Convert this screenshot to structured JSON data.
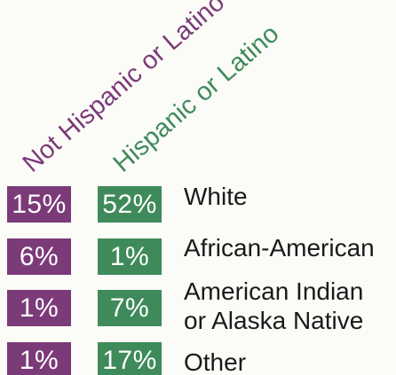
{
  "colors": {
    "not_hispanic": "#7b3a78",
    "hispanic": "#3f8a5a",
    "text": "#1a1a1a",
    "background": "#fbfbf8"
  },
  "chart_data": {
    "type": "table",
    "columns": [
      "Not Hispanic or Latino",
      "Hispanic or Latino"
    ],
    "rows": [
      {
        "label": "White",
        "values": [
          "15%",
          "52%"
        ]
      },
      {
        "label": "African-American",
        "values": [
          "6%",
          "1%"
        ]
      },
      {
        "label": "American Indian\nor Alaska Native",
        "values": [
          "1%",
          "7%"
        ]
      },
      {
        "label": "Other",
        "values": [
          "1%",
          "17%"
        ]
      }
    ]
  }
}
